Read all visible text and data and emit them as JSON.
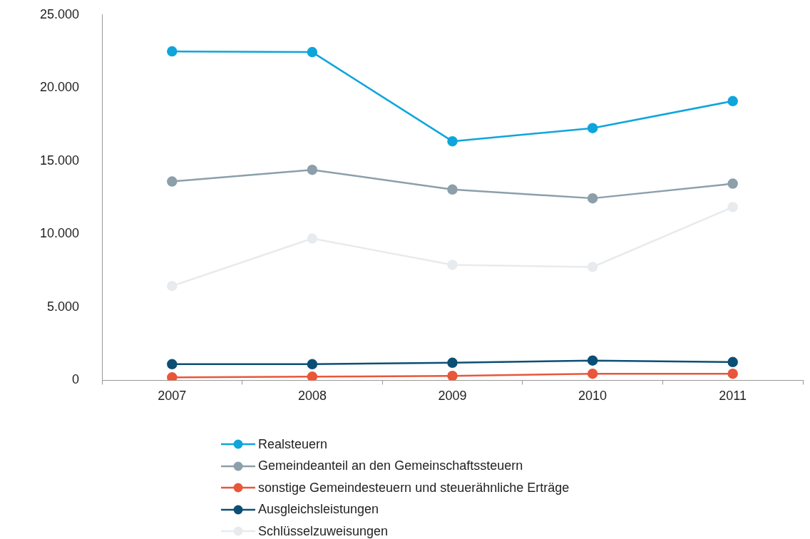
{
  "chart_data": {
    "type": "line",
    "categories": [
      "2007",
      "2008",
      "2009",
      "2010",
      "2011"
    ],
    "series": [
      {
        "name": "Realsteuern",
        "color": "#0ea5dc",
        "values": [
          22500,
          22450,
          16350,
          17250,
          19100
        ]
      },
      {
        "name": "Gemeindeanteil an den Gemeinschaftssteuern",
        "color": "#8c9faa",
        "values": [
          13600,
          14400,
          13050,
          12450,
          13450
        ]
      },
      {
        "name": "sonstige Gemeindesteuern und steuerähnliche Erträge",
        "color": "#e8573a",
        "values": [
          200,
          250,
          300,
          450,
          450
        ]
      },
      {
        "name": "Ausgleichsleistungen",
        "color": "#0c4f75",
        "values": [
          1100,
          1100,
          1200,
          1350,
          1250
        ]
      },
      {
        "name": "Schlüsselzuweisungen",
        "color": "#e8ebed",
        "values": [
          6450,
          9700,
          7900,
          7750,
          11850
        ]
      }
    ],
    "ylim": [
      0,
      25000
    ],
    "yticks": [
      0,
      {
        "value": 5000,
        "label": "5.000"
      },
      {
        "value": 10000,
        "label": "10.000"
      },
      {
        "value": 15000,
        "label": "15.000"
      },
      {
        "value": 20000,
        "label": "20.000"
      },
      {
        "value": 25000,
        "label": "25.000"
      }
    ],
    "grid": false,
    "legend": "bottom",
    "marker": "circle",
    "line_style": "solid"
  }
}
